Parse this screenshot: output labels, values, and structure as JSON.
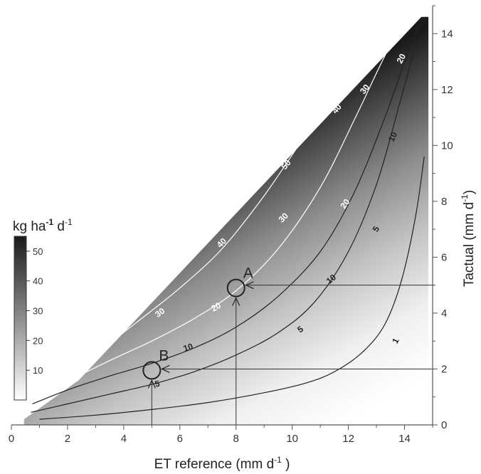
{
  "chart_data": {
    "type": "heatmap",
    "title": "",
    "xlabel": {
      "main": "ET reference (mm d",
      "sup": "-1",
      "tail": " )"
    },
    "ylabel": {
      "main": "Tactual (mm d",
      "sup": "-1",
      "tail": ")"
    },
    "xlim": [
      0,
      15
    ],
    "ylim": [
      0,
      15
    ],
    "x_ticks": [
      "0",
      "2",
      "4",
      "6",
      "8",
      "10",
      "12",
      "14"
    ],
    "y_ticks": [
      "0",
      "2",
      "4",
      "6",
      "8",
      "10",
      "12",
      "14"
    ],
    "colorbar": {
      "title": {
        "main": "kg ha",
        "sup1": "-1",
        "mid": " d",
        "sup2": "-1"
      },
      "range": [
        0,
        55
      ],
      "ticks": [
        "10",
        "20",
        "30",
        "40",
        "50"
      ],
      "color_low": "#ffffff",
      "color_high": "#1a1a1a"
    },
    "contours": [
      {
        "level": 1,
        "label": "1",
        "color": "#222222",
        "points": [
          [
            1.0,
            0.2
          ],
          [
            3,
            0.35
          ],
          [
            5,
            0.55
          ],
          [
            7,
            0.8
          ],
          [
            9,
            1.15
          ],
          [
            10.5,
            1.5
          ],
          [
            11.5,
            1.9
          ],
          [
            12.5,
            2.6
          ],
          [
            13.3,
            3.6
          ],
          [
            13.9,
            5.2
          ],
          [
            14.4,
            7.5
          ],
          [
            14.7,
            9.6
          ]
        ]
      },
      {
        "level": 5,
        "label": "5",
        "color": "#222222",
        "points": [
          [
            0.7,
            0.45
          ],
          [
            2,
            0.75
          ],
          [
            3.5,
            1.1
          ],
          [
            5,
            1.45
          ],
          [
            6.5,
            1.9
          ],
          [
            8,
            2.5
          ],
          [
            9.5,
            3.3
          ],
          [
            10.8,
            4.4
          ],
          [
            12,
            6.2
          ],
          [
            13,
            8.6
          ],
          [
            13.8,
            11.4
          ],
          [
            14.5,
            14.0
          ]
        ]
      },
      {
        "level": 10,
        "label": "10",
        "color": "#222222",
        "points": [
          [
            0.75,
            0.75
          ],
          [
            2,
            1.25
          ],
          [
            3.5,
            1.75
          ],
          [
            5,
            2.2
          ],
          [
            6.5,
            2.75
          ],
          [
            8,
            3.5
          ],
          [
            9.5,
            4.6
          ],
          [
            11,
            6.2
          ],
          [
            12.2,
            8.3
          ],
          [
            13.3,
            11.0
          ],
          [
            14.3,
            13.8
          ],
          [
            14.8,
            14.6
          ]
        ]
      },
      {
        "level": 20,
        "label": "20",
        "color": "#ffffff",
        "points": [
          [
            1.05,
            1.0
          ],
          [
            2,
            1.55
          ],
          [
            3.5,
            2.3
          ],
          [
            5,
            3.0
          ],
          [
            6.5,
            3.8
          ],
          [
            8,
            4.8
          ],
          [
            9.5,
            6.3
          ],
          [
            11,
            8.5
          ],
          [
            12.3,
            11.1
          ],
          [
            13.4,
            13.4
          ],
          [
            14.0,
            14.2
          ]
        ]
      },
      {
        "level": 30,
        "label": "30",
        "color": "#ffffff",
        "points": [
          [
            1.6,
            1.55
          ],
          [
            3,
            2.55
          ],
          [
            4.5,
            3.7
          ],
          [
            6,
            4.9
          ],
          [
            7.5,
            6.3
          ],
          [
            9,
            8.2
          ],
          [
            10.5,
            10.4
          ],
          [
            11.8,
            12.2
          ],
          [
            12.6,
            13.0
          ]
        ]
      },
      {
        "level": 40,
        "label": "40",
        "color": "#ffffff",
        "points": [
          [
            2.6,
            2.55
          ],
          [
            4,
            3.9
          ],
          [
            5.5,
            5.3
          ],
          [
            7,
            6.8
          ],
          [
            8.5,
            8.6
          ],
          [
            9.8,
            10.1
          ],
          [
            11.0,
            11.2
          ]
        ]
      },
      {
        "level": 50,
        "label": "50",
        "color": "#ffffff",
        "points": [
          [
            4.3,
            4.6
          ],
          [
            5.5,
            5.9
          ],
          [
            7,
            7.5
          ],
          [
            8.3,
            8.9
          ],
          [
            9.4,
            9.8
          ]
        ]
      }
    ],
    "contour_labels": [
      {
        "label": "1",
        "x": 13.7,
        "y": 3.0,
        "color": "#222222",
        "angle": -62
      },
      {
        "label": "5",
        "x": 5.2,
        "y": 1.45,
        "color": "#222222",
        "angle": -12
      },
      {
        "label": "5",
        "x": 10.3,
        "y": 3.4,
        "color": "#222222",
        "angle": -35
      },
      {
        "label": "5",
        "x": 13.0,
        "y": 7.0,
        "color": "#222222",
        "angle": -60
      },
      {
        "label": "10",
        "x": 6.3,
        "y": 2.75,
        "color": "#222222",
        "angle": -18
      },
      {
        "label": "10",
        "x": 11.4,
        "y": 5.2,
        "color": "#222222",
        "angle": -40
      },
      {
        "label": "10",
        "x": 13.6,
        "y": 10.3,
        "color": "#222222",
        "angle": -65
      },
      {
        "label": "20",
        "x": 2.3,
        "y": 1.95,
        "color": "#ffffff",
        "angle": -28
      },
      {
        "label": "20",
        "x": 7.3,
        "y": 4.2,
        "color": "#ffffff",
        "angle": -30
      },
      {
        "label": "20",
        "x": 11.9,
        "y": 7.9,
        "color": "#ffffff",
        "angle": -55
      },
      {
        "label": "20",
        "x": 13.9,
        "y": 13.1,
        "color": "#ffffff",
        "angle": -62
      },
      {
        "label": "30",
        "x": 5.3,
        "y": 4.0,
        "color": "#ffffff",
        "angle": -35
      },
      {
        "label": "30",
        "x": 9.7,
        "y": 7.4,
        "color": "#ffffff",
        "angle": -45
      },
      {
        "label": "30",
        "x": 12.6,
        "y": 12.0,
        "color": "#ffffff",
        "angle": -52
      },
      {
        "label": "40",
        "x": 7.5,
        "y": 6.5,
        "color": "#ffffff",
        "angle": -45
      },
      {
        "label": "40",
        "x": 11.6,
        "y": 11.3,
        "color": "#ffffff",
        "angle": -50
      },
      {
        "label": "50",
        "x": 9.8,
        "y": 9.3,
        "color": "#ffffff",
        "angle": -50
      }
    ],
    "points": [
      {
        "label": "A",
        "x": 8.0,
        "y": 4.9,
        "y_ref": 5.0
      },
      {
        "label": "B",
        "x": 5.0,
        "y": 1.95,
        "y_ref": 2.0
      }
    ]
  }
}
